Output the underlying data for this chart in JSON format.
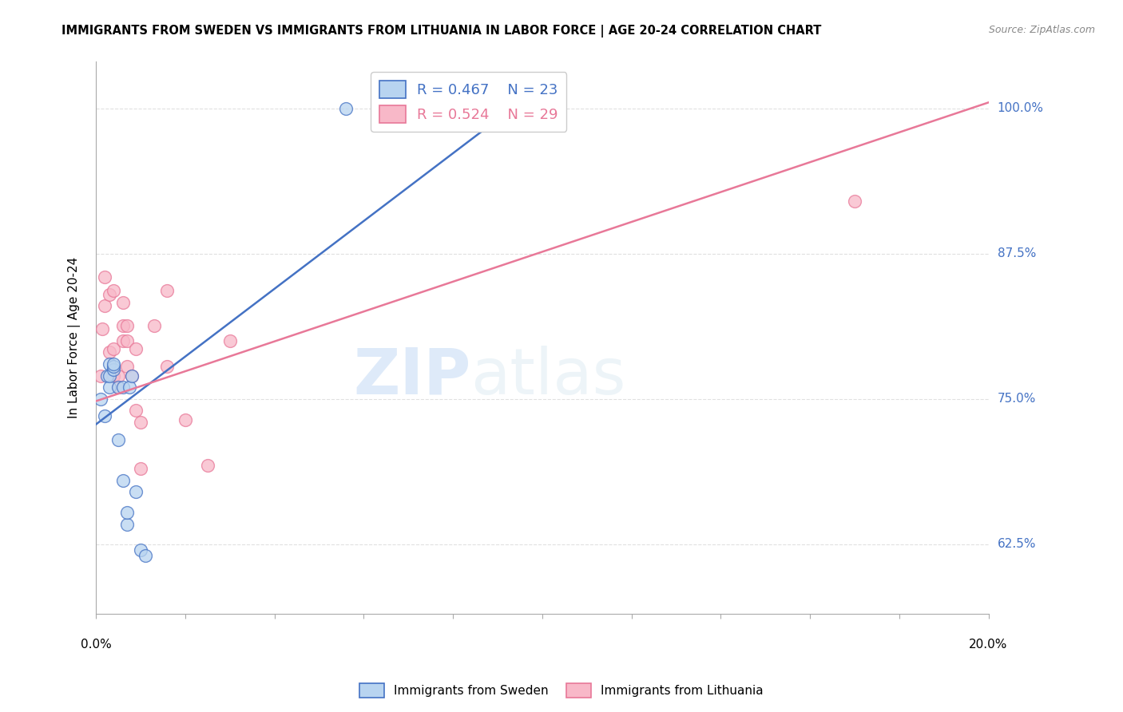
{
  "title": "IMMIGRANTS FROM SWEDEN VS IMMIGRANTS FROM LITHUANIA IN LABOR FORCE | AGE 20-24 CORRELATION CHART",
  "source": "Source: ZipAtlas.com",
  "ylabel": "In Labor Force | Age 20-24",
  "ytick_labels": [
    "62.5%",
    "75.0%",
    "87.5%",
    "100.0%"
  ],
  "ytick_values": [
    0.625,
    0.75,
    0.875,
    1.0
  ],
  "xlim": [
    0.0,
    0.2
  ],
  "ylim": [
    0.565,
    1.04
  ],
  "legend_r_sweden": "R = 0.467",
  "legend_n_sweden": "N = 23",
  "legend_r_lithuania": "R = 0.524",
  "legend_n_lithuania": "N = 29",
  "sweden_color": "#b8d4f0",
  "lithuania_color": "#f8b8c8",
  "sweden_line_color": "#4472c4",
  "lithuania_line_color": "#e87898",
  "watermark_zip": "ZIP",
  "watermark_atlas": "atlas",
  "sweden_x": [
    0.001,
    0.002,
    0.0025,
    0.003,
    0.003,
    0.003,
    0.004,
    0.004,
    0.004,
    0.005,
    0.005,
    0.006,
    0.006,
    0.007,
    0.007,
    0.0075,
    0.008,
    0.009,
    0.01,
    0.011,
    0.056,
    0.065,
    0.095
  ],
  "sweden_y": [
    0.75,
    0.735,
    0.77,
    0.76,
    0.77,
    0.78,
    0.775,
    0.778,
    0.78,
    0.715,
    0.76,
    0.68,
    0.76,
    0.642,
    0.652,
    0.76,
    0.77,
    0.67,
    0.62,
    0.615,
    1.0,
    1.0,
    1.0
  ],
  "lithuania_x": [
    0.001,
    0.0015,
    0.002,
    0.002,
    0.003,
    0.003,
    0.004,
    0.004,
    0.004,
    0.005,
    0.005,
    0.006,
    0.006,
    0.006,
    0.007,
    0.007,
    0.007,
    0.008,
    0.009,
    0.009,
    0.01,
    0.01,
    0.013,
    0.016,
    0.016,
    0.02,
    0.025,
    0.03,
    0.17
  ],
  "lithuania_y": [
    0.77,
    0.81,
    0.83,
    0.855,
    0.79,
    0.84,
    0.77,
    0.793,
    0.843,
    0.76,
    0.77,
    0.8,
    0.813,
    0.833,
    0.778,
    0.8,
    0.813,
    0.77,
    0.74,
    0.793,
    0.69,
    0.73,
    0.813,
    0.778,
    0.843,
    0.732,
    0.693,
    0.8,
    0.92
  ],
  "sweden_line_x": [
    0.0,
    0.095
  ],
  "sweden_line_y": [
    0.728,
    1.005
  ],
  "lithuania_line_x": [
    0.0,
    0.2
  ],
  "lithuania_line_y": [
    0.748,
    1.005
  ],
  "background_color": "#ffffff",
  "grid_color": "#e0e0e0"
}
